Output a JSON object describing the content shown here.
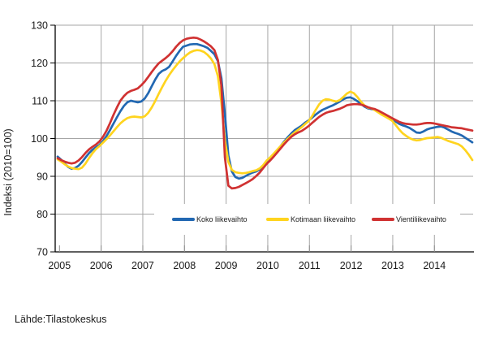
{
  "source": "Lähde:Tilastokeskus",
  "colors": {
    "gridline": "#a6a6a6",
    "axis": "#000000",
    "background": "#ffffff",
    "series_blue": "#2268b2",
    "series_yellow": "#ffd41f",
    "series_red": "#d03232"
  },
  "chart_data": {
    "type": "line",
    "title": "",
    "xlabel": "",
    "ylabel": "Indeksi (2010=100)",
    "ylim": [
      70,
      130
    ],
    "y_ticks": [
      70,
      80,
      90,
      100,
      110,
      120,
      130
    ],
    "x_tick_labels": [
      "2005",
      "2006",
      "2007",
      "2008",
      "2009",
      "2010",
      "2011",
      "2012",
      "2013",
      "2014"
    ],
    "x_unit": "monthly trend, Jan 2005 - Dec 2014",
    "grid": true,
    "legend_position": "bottom-inside",
    "series": [
      {
        "name": "Koko liikevaihto",
        "color": "#2268b2",
        "values": [
          95.2,
          94.4,
          93.4,
          92.5,
          92.0,
          92.2,
          92.8,
          93.8,
          95.0,
          96.1,
          97.0,
          97.7,
          98.3,
          99.3,
          100.6,
          102.2,
          103.9,
          105.6,
          107.2,
          108.6,
          109.6,
          110.0,
          109.8,
          109.6,
          109.8,
          110.6,
          112.0,
          113.8,
          115.6,
          117.1,
          117.9,
          118.3,
          119.0,
          120.4,
          121.9,
          123.2,
          124.3,
          124.6,
          124.9,
          125.0,
          125.0,
          124.7,
          124.4,
          124.0,
          123.2,
          122.3,
          120.5,
          116.0,
          106.5,
          95.5,
          91.3,
          89.8,
          89.4,
          89.6,
          90.1,
          90.6,
          91.0,
          91.3,
          91.8,
          92.8,
          93.9,
          94.7,
          95.7,
          96.8,
          98.0,
          99.2,
          100.3,
          101.3,
          102.2,
          102.8,
          103.4,
          104.2,
          104.8,
          105.5,
          106.3,
          107.0,
          107.6,
          108.0,
          108.4,
          108.8,
          109.3,
          109.8,
          110.4,
          110.8,
          110.9,
          110.5,
          109.9,
          109.2,
          108.5,
          108.0,
          107.8,
          107.6,
          107.2,
          106.7,
          106.2,
          105.7,
          105.2,
          104.5,
          103.9,
          103.5,
          103.2,
          102.8,
          102.2,
          101.6,
          101.5,
          101.9,
          102.4,
          102.7,
          102.9,
          103.1,
          103.2,
          102.9,
          102.4,
          101.9,
          101.5,
          101.2,
          100.8,
          100.2,
          99.6,
          99.0
        ]
      },
      {
        "name": "Kotimaan liikevaihto",
        "color": "#ffd41f",
        "values": [
          94.5,
          93.9,
          93.2,
          92.6,
          92.2,
          92.0,
          91.9,
          92.3,
          93.4,
          94.8,
          96.1,
          97.2,
          98.0,
          98.9,
          99.8,
          100.8,
          101.9,
          103.0,
          104.0,
          104.8,
          105.4,
          105.7,
          105.8,
          105.7,
          105.6,
          105.9,
          106.8,
          108.2,
          109.9,
          111.8,
          113.6,
          115.3,
          116.8,
          118.1,
          119.3,
          120.4,
          121.3,
          122.1,
          122.8,
          123.2,
          123.4,
          123.3,
          122.9,
          122.2,
          121.2,
          119.7,
          116.5,
          109.5,
          99.5,
          93.8,
          91.7,
          91.1,
          90.9,
          90.8,
          90.9,
          91.1,
          91.4,
          91.6,
          92.1,
          93.0,
          94.2,
          95.0,
          96.0,
          97.0,
          98.0,
          99.0,
          99.9,
          100.8,
          101.6,
          102.3,
          103.0,
          103.8,
          104.6,
          105.9,
          107.5,
          109.0,
          110.0,
          110.4,
          110.3,
          110.0,
          109.8,
          110.2,
          111.0,
          111.9,
          112.4,
          112.0,
          111.0,
          109.8,
          108.8,
          108.2,
          108.0,
          107.5,
          106.9,
          106.3,
          105.8,
          105.3,
          104.7,
          103.6,
          102.4,
          101.4,
          100.7,
          100.1,
          99.7,
          99.5,
          99.6,
          99.9,
          100.1,
          100.2,
          100.3,
          100.4,
          100.2,
          99.8,
          99.4,
          99.1,
          98.8,
          98.5,
          97.9,
          96.9,
          95.7,
          94.3
        ]
      },
      {
        "name": "Vientiliikevaihto",
        "color": "#d03232",
        "values": [
          94.8,
          94.3,
          93.9,
          93.6,
          93.4,
          93.6,
          94.2,
          95.1,
          96.2,
          97.1,
          97.8,
          98.4,
          99.2,
          100.4,
          102.0,
          104.0,
          106.2,
          108.2,
          110.0,
          111.2,
          112.1,
          112.6,
          112.9,
          113.3,
          114.1,
          115.1,
          116.3,
          117.6,
          118.8,
          119.9,
          120.6,
          121.3,
          122.1,
          123.1,
          124.3,
          125.3,
          126.0,
          126.4,
          126.6,
          126.7,
          126.6,
          126.2,
          125.7,
          125.1,
          124.4,
          123.4,
          120.8,
          114.0,
          95.0,
          87.5,
          86.8,
          86.9,
          87.2,
          87.7,
          88.2,
          88.7,
          89.3,
          90.1,
          91.0,
          92.2,
          93.3,
          94.2,
          95.2,
          96.3,
          97.4,
          98.5,
          99.5,
          100.4,
          101.1,
          101.6,
          102.0,
          102.6,
          103.3,
          104.1,
          104.9,
          105.7,
          106.3,
          106.8,
          107.1,
          107.3,
          107.6,
          107.9,
          108.3,
          108.8,
          109.0,
          109.1,
          109.1,
          109.0,
          108.7,
          108.3,
          108.0,
          107.8,
          107.4,
          106.9,
          106.4,
          105.9,
          105.4,
          104.9,
          104.4,
          104.1,
          103.9,
          103.8,
          103.7,
          103.7,
          103.8,
          104.0,
          104.1,
          104.1,
          104.0,
          103.8,
          103.6,
          103.4,
          103.2,
          103.0,
          102.9,
          102.8,
          102.7,
          102.5,
          102.3,
          102.1
        ]
      }
    ]
  }
}
